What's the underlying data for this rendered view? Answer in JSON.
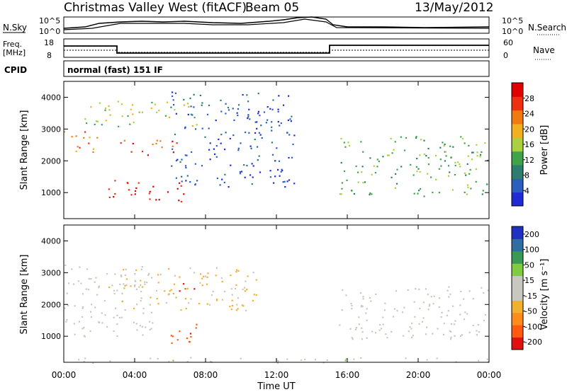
{
  "header": {
    "title": "Christmas Valley West (fitACF)",
    "beam": "Beam 05",
    "date": "13/May/2012"
  },
  "status_panels": {
    "nsky_label": "N.Sky",
    "nsearch_label": "N.Search",
    "noise_ticks_left": [
      "10^5",
      "10^0"
    ],
    "noise_ticks_right": [
      "10^5",
      "10^0"
    ],
    "freq_label_1": "Freq.",
    "freq_label_2": "[MHz]",
    "freq_ticks": [
      "18",
      "8"
    ],
    "nave_label": "Nave",
    "nave_ticks": [
      "60",
      "0"
    ],
    "cpid_label": "CPID",
    "cpid_value": "normal (fast) 151 IF"
  },
  "colors": {
    "power_scale": [
      "#1f2bd6",
      "#2a5fbf",
      "#2e7d6e",
      "#3fa34a",
      "#a8d040",
      "#f0b020",
      "#f07a10",
      "#ee3010",
      "#e00000"
    ],
    "velocity_scale": [
      "#e01010",
      "#ff5a10",
      "#ff8c1a",
      "#f0b030",
      "#c8c8c0",
      "#c8c8c0",
      "#80cc40",
      "#3a9a55",
      "#2e6fa0",
      "#2030c0"
    ],
    "ground_scatter": "#c8c8c0"
  },
  "chart_data": [
    {
      "type": "heatmap",
      "name": "power",
      "ylabel": "Slant Range [km]",
      "xlabel": "",
      "yticks": [
        "1000",
        "2000",
        "3000",
        "4000"
      ],
      "ylim": [
        180,
        4500
      ],
      "xlim_hours": [
        0,
        24
      ],
      "colorbar_label": "Power [dB]",
      "colorbar_ticks": [
        "4",
        "8",
        "12",
        "16",
        "20",
        "24",
        "28"
      ],
      "colorbar_range": [
        0,
        32
      ],
      "features": [
        {
          "t": [
            0.0,
            2.0
          ],
          "r": [
            2200,
            3000
          ],
          "value": 22
        },
        {
          "t": [
            2.5,
            7.0
          ],
          "r": [
            700,
            1400
          ],
          "value": 29
        },
        {
          "t": [
            3.0,
            6.5
          ],
          "r": [
            2200,
            2700
          ],
          "value": 26
        },
        {
          "t": [
            1.0,
            7.5
          ],
          "r": [
            3100,
            3900
          ],
          "value": 16
        },
        {
          "t": [
            6.0,
            13.0
          ],
          "r": [
            1200,
            4200
          ],
          "value": 5
        },
        {
          "t": [
            15.5,
            24.0
          ],
          "r": [
            900,
            2800
          ],
          "value": 13
        }
      ]
    },
    {
      "type": "heatmap",
      "name": "velocity",
      "ylabel": "Slant Range [km]",
      "xlabel": "Time UT",
      "xticks": [
        "00:00",
        "04:00",
        "08:00",
        "12:00",
        "16:00",
        "20:00",
        "00:00"
      ],
      "yticks": [
        "1000",
        "2000",
        "3000",
        "4000"
      ],
      "ylim": [
        180,
        4500
      ],
      "xlim_hours": [
        0,
        24
      ],
      "colorbar_label": "Velocity [m s⁻¹]",
      "colorbar_ticks": [
        "200",
        "100",
        "50",
        "15",
        "-15",
        "-50",
        "-100",
        "-200"
      ],
      "colorbar_range": [
        -250,
        250
      ],
      "features": [
        {
          "t": [
            0.0,
            5.0
          ],
          "r": [
            1000,
            3300
          ],
          "value": 0,
          "ground_scatter": true
        },
        {
          "t": [
            5.5,
            7.5
          ],
          "r": [
            800,
            1500
          ],
          "value": -180
        },
        {
          "t": [
            6.5,
            7.5
          ],
          "r": [
            2200,
            2700
          ],
          "value": -220
        },
        {
          "t": [
            2.5,
            11.0
          ],
          "r": [
            1800,
            3200
          ],
          "value": -60
        },
        {
          "t": [
            15.5,
            24.0
          ],
          "r": [
            900,
            2600
          ],
          "value": 0,
          "ground_scatter": true
        },
        {
          "t": [
            0.0,
            24.0
          ],
          "r": [
            180,
            350
          ],
          "value": 30
        }
      ]
    }
  ]
}
